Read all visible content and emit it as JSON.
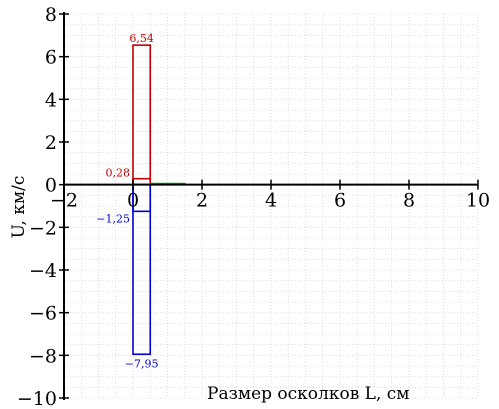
{
  "chart_data": {
    "type": "bar",
    "xlabel": "Размер осколков L, см",
    "ylabel": "U, км/с",
    "xlim": [
      -2,
      10
    ],
    "ylim": [
      -10,
      8
    ],
    "x_ticks": [
      "−2",
      "0",
      "2",
      "4",
      "6",
      "8",
      "10"
    ],
    "y_ticks": [
      "8",
      "6",
      "4",
      "2",
      "0",
      "−2",
      "−4",
      "−6",
      "−8",
      "−10"
    ],
    "grid": true,
    "series": [
      {
        "color": "#c00000",
        "bars": [
          {
            "x0": 0.0,
            "x1": 0.5,
            "value": 6.54,
            "label": "6,54"
          },
          {
            "x0": 0.0,
            "x1": 0.5,
            "value": 0.28,
            "label": "0,28"
          }
        ]
      },
      {
        "color": "#0000cc",
        "bars": [
          {
            "x0": 0.0,
            "x1": 0.5,
            "value": -7.95,
            "label": "−7,95"
          },
          {
            "x0": 0.0,
            "x1": 0.5,
            "value": -1.25,
            "label": "−1,25"
          }
        ]
      },
      {
        "color": "#00aa00",
        "bars": [
          {
            "x0": 0.5,
            "x1": 1.5,
            "value": 0.05,
            "label": ""
          }
        ]
      }
    ]
  }
}
